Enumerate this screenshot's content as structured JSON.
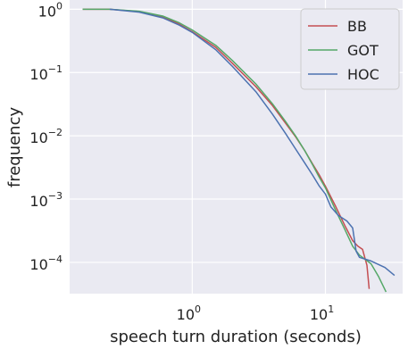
{
  "chart_data": {
    "type": "line",
    "title": "",
    "xlabel": "speech turn duration (seconds)",
    "ylabel": "frequency",
    "xscale": "log",
    "yscale": "log",
    "xlim": [
      0.12,
      38
    ],
    "ylim": [
      3.2e-05,
      1.4
    ],
    "grid": true,
    "legend_position": "top-right",
    "x_ticks": [
      {
        "value": 1,
        "base": "10",
        "exp": "0"
      },
      {
        "value": 10,
        "base": "10",
        "exp": "1"
      }
    ],
    "y_ticks": [
      {
        "value": 1,
        "base": "10",
        "exp": "0"
      },
      {
        "value": 0.1,
        "base": "10",
        "exp": "−1"
      },
      {
        "value": 0.01,
        "base": "10",
        "exp": "−2"
      },
      {
        "value": 0.001,
        "base": "10",
        "exp": "−3"
      },
      {
        "value": 0.0001,
        "base": "10",
        "exp": "−4"
      }
    ],
    "series": [
      {
        "name": "BB",
        "color": "#c44e52",
        "points": [
          [
            0.15,
            1.0
          ],
          [
            0.24,
            1.0
          ],
          [
            0.4,
            0.92
          ],
          [
            0.6,
            0.76
          ],
          [
            0.8,
            0.58
          ],
          [
            1.0,
            0.44
          ],
          [
            1.5,
            0.25
          ],
          [
            2.0,
            0.14
          ],
          [
            3.0,
            0.06
          ],
          [
            4.0,
            0.03
          ],
          [
            5.0,
            0.016
          ],
          [
            6.0,
            0.0095
          ],
          [
            7.0,
            0.0058
          ],
          [
            8.0,
            0.0036
          ],
          [
            9.0,
            0.0024
          ],
          [
            10.0,
            0.0016
          ],
          [
            12.0,
            0.00075
          ],
          [
            14.0,
            0.00038
          ],
          [
            16.0,
            0.00022
          ],
          [
            17.5,
            0.00018
          ],
          [
            19.0,
            0.00016
          ],
          [
            20.5,
            9e-05
          ],
          [
            21.3,
            3.8e-05
          ]
        ]
      },
      {
        "name": "GOT",
        "color": "#55a868",
        "points": [
          [
            0.15,
            1.0
          ],
          [
            0.24,
            1.0
          ],
          [
            0.4,
            0.93
          ],
          [
            0.6,
            0.78
          ],
          [
            0.8,
            0.61
          ],
          [
            1.0,
            0.47
          ],
          [
            1.5,
            0.27
          ],
          [
            2.0,
            0.155
          ],
          [
            3.0,
            0.066
          ],
          [
            4.0,
            0.032
          ],
          [
            5.0,
            0.017
          ],
          [
            6.0,
            0.0098
          ],
          [
            7.0,
            0.0058
          ],
          [
            8.0,
            0.0035
          ],
          [
            9.0,
            0.0022
          ],
          [
            10.0,
            0.0015
          ],
          [
            12.0,
            0.00065
          ],
          [
            14.0,
            0.00033
          ],
          [
            16.0,
            0.00018
          ],
          [
            18.0,
            0.00013
          ],
          [
            22.0,
            9.5e-05
          ],
          [
            25.0,
            6e-05
          ],
          [
            28.5,
            3.4e-05
          ]
        ]
      },
      {
        "name": "HOC",
        "color": "#4c72b0",
        "points": [
          [
            0.24,
            1.0
          ],
          [
            0.4,
            0.9
          ],
          [
            0.6,
            0.73
          ],
          [
            0.8,
            0.56
          ],
          [
            1.0,
            0.43
          ],
          [
            1.5,
            0.23
          ],
          [
            2.0,
            0.125
          ],
          [
            3.0,
            0.05
          ],
          [
            4.0,
            0.022
          ],
          [
            5.0,
            0.011
          ],
          [
            6.0,
            0.0061
          ],
          [
            7.0,
            0.0037
          ],
          [
            8.0,
            0.0024
          ],
          [
            9.0,
            0.0016
          ],
          [
            10.0,
            0.0012
          ],
          [
            11.0,
            0.00075
          ],
          [
            12.5,
            0.00055
          ],
          [
            14.5,
            0.00045
          ],
          [
            16.0,
            0.00035
          ],
          [
            17.0,
            0.00015
          ],
          [
            18.0,
            0.00012
          ],
          [
            22.0,
            0.000105
          ],
          [
            28.0,
            8.3e-05
          ],
          [
            33.0,
            6.2e-05
          ]
        ]
      }
    ]
  }
}
